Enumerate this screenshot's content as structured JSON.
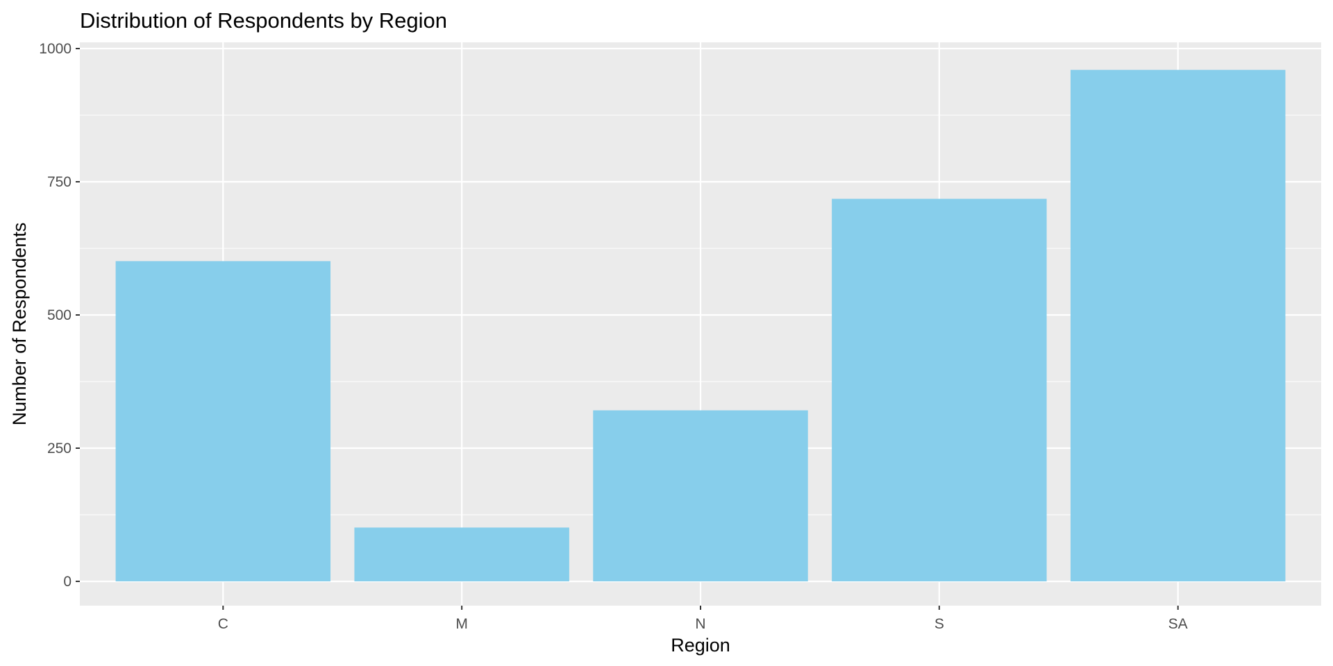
{
  "chart_data": {
    "type": "bar",
    "title": "Distribution of Respondents by Region",
    "xlabel": "Region",
    "ylabel": "Number of Respondents",
    "categories": [
      "C",
      "M",
      "N",
      "S",
      "SA"
    ],
    "values": [
      601,
      101,
      321,
      718,
      960
    ],
    "ylim": [
      0,
      1000
    ],
    "yticks": [
      0,
      250,
      500,
      750,
      1000
    ],
    "ytick_labels": [
      "0",
      "250",
      "500",
      "750",
      "1000"
    ],
    "grid": true,
    "legend": "none",
    "colors": {
      "bar": "#87CEEB",
      "panel": "#EBEBEB",
      "grid": "#FFFFFF",
      "text": "#000000",
      "tick_text": "#4D4D4D",
      "tick_mark": "#333333"
    }
  }
}
